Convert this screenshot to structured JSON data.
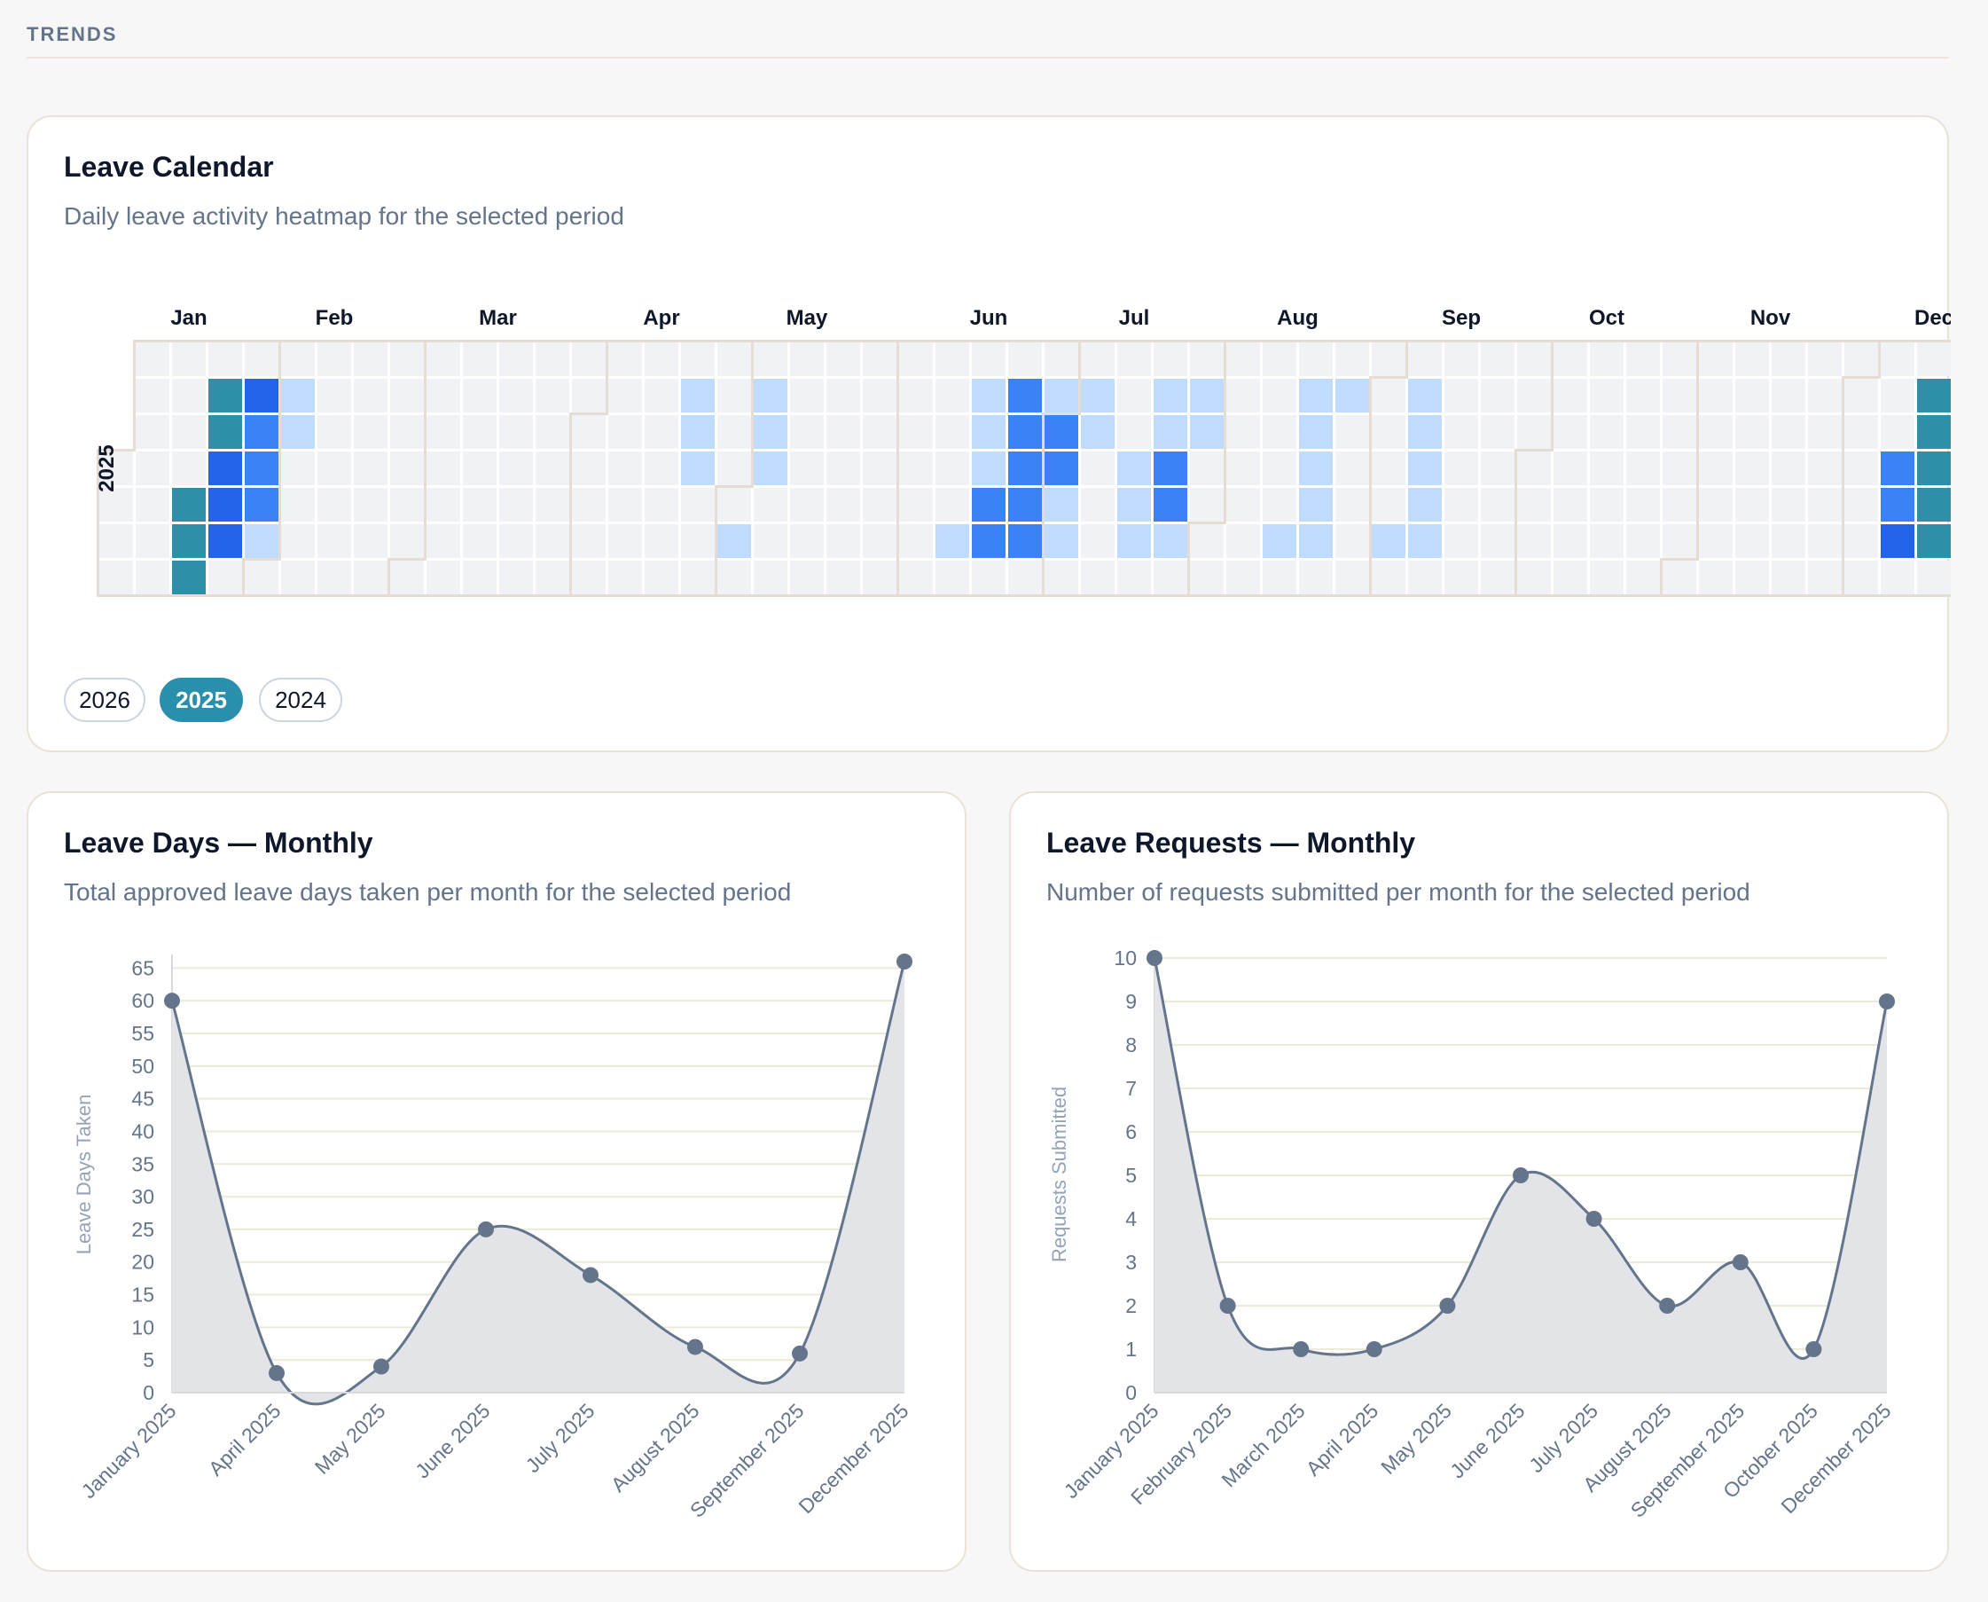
{
  "section": {
    "title": "TRENDS"
  },
  "calendar": {
    "title": "Leave Calendar",
    "subtitle": "Daily leave activity heatmap for the selected period",
    "year_label": "2025",
    "months": [
      "Jan",
      "Feb",
      "Mar",
      "Apr",
      "May",
      "Jun",
      "Jul",
      "Aug",
      "Sep",
      "Oct",
      "Nov",
      "Dec"
    ],
    "year_options": [
      {
        "label": "2026",
        "active": false
      },
      {
        "label": "2025",
        "active": true
      },
      {
        "label": "2024",
        "active": false
      }
    ],
    "colors": {
      "empty": "#f1f2f5",
      "level1": "#bfdbfe",
      "level2": "#60a5fa",
      "level3": "#3b82f6",
      "level4": "#2563eb",
      "teal": "#2e8fa8",
      "border": "#e5ddd3"
    }
  },
  "leave_days": {
    "title": "Leave Days — Monthly",
    "subtitle": "Total approved leave days taken per month for the selected period",
    "chart_data": {
      "type": "area",
      "categories": [
        "January 2025",
        "April 2025",
        "May 2025",
        "June 2025",
        "July 2025",
        "August 2025",
        "September 2025",
        "December 2025"
      ],
      "values": [
        60,
        3,
        4,
        25,
        18,
        7,
        6,
        66
      ],
      "ylabel": "Leave Days Taken",
      "ylim": [
        0,
        66
      ],
      "yticks": [
        "0",
        "5",
        "10",
        "15",
        "20",
        "25",
        "30",
        "35",
        "40",
        "45",
        "50",
        "55",
        "60",
        "65"
      ],
      "grid": true,
      "line_color": "#64748b",
      "fill_color": "#e2e4e8"
    }
  },
  "leave_requests": {
    "title": "Leave Requests — Monthly",
    "subtitle": "Number of requests submitted per month for the selected period",
    "chart_data": {
      "type": "area",
      "categories": [
        "January 2025",
        "February 2025",
        "March 2025",
        "April 2025",
        "May 2025",
        "June 2025",
        "July 2025",
        "August 2025",
        "September 2025",
        "October 2025",
        "December 2025"
      ],
      "values": [
        10,
        2,
        1,
        1,
        2,
        5,
        4,
        2,
        3,
        1,
        9
      ],
      "ylabel": "Requests Submitted",
      "ylim": [
        0,
        10
      ],
      "yticks": [
        "0",
        "1",
        "2",
        "3",
        "4",
        "5",
        "6",
        "7",
        "8",
        "9",
        "10"
      ],
      "grid": true,
      "line_color": "#64748b",
      "fill_color": "#e2e4e8"
    }
  }
}
